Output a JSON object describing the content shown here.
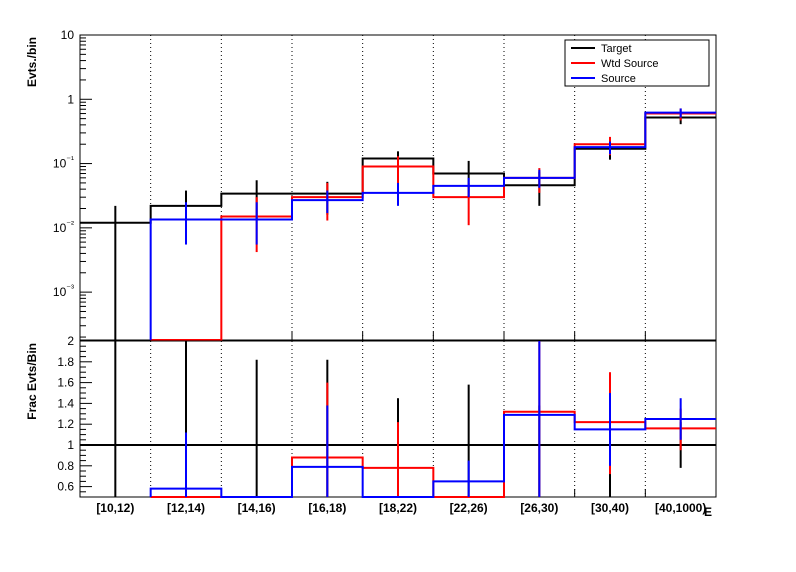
{
  "chart_data": [
    {
      "type": "line",
      "panel": "top",
      "ylabel": "Evts./bin",
      "yscale": "log",
      "ylim": [
        0.00018,
        10
      ],
      "yticks": [
        {
          "v": 10,
          "text": "10"
        },
        {
          "v": 1,
          "text": "1"
        },
        {
          "v": 0.1,
          "text": "10⁻¹"
        },
        {
          "v": 0.01,
          "text": "10⁻²"
        },
        {
          "v": 0.001,
          "text": "10⁻³"
        }
      ],
      "categories": [
        "[10,12)",
        "[12,14)",
        "[14,16)",
        "[16,18)",
        "[18,22)",
        "[22,26)",
        "[26,30)",
        "[30,40)",
        "[40,1000)"
      ],
      "legend": {
        "position": "top-right"
      },
      "series": [
        {
          "name": "Target",
          "color": "#000000",
          "values": [
            0.012,
            0.022,
            0.034,
            0.034,
            0.12,
            0.07,
            0.046,
            0.17,
            0.52
          ],
          "err_lo": [
            0.00018,
            0.008,
            0.014,
            0.016,
            0.08,
            0.03,
            0.022,
            0.115,
            0.41
          ],
          "err_hi": [
            0.022,
            0.038,
            0.055,
            0.052,
            0.155,
            0.11,
            0.075,
            0.22,
            0.62
          ]
        },
        {
          "name": "Wtd Source",
          "color": "#ff0000",
          "values": [
            null,
            0.00018,
            0.015,
            0.03,
            0.09,
            0.03,
            0.06,
            0.2,
            0.6
          ],
          "err_lo": [
            null,
            null,
            0.0042,
            0.013,
            0.045,
            0.011,
            0.035,
            0.135,
            0.47
          ],
          "err_hi": [
            null,
            null,
            0.03,
            0.05,
            0.13,
            0.05,
            0.085,
            0.26,
            0.72
          ]
        },
        {
          "name": "Source",
          "color": "#0000ff",
          "values": [
            null,
            0.0135,
            0.0135,
            0.027,
            0.035,
            0.045,
            0.06,
            0.18,
            0.62
          ],
          "err_lo": [
            null,
            0.0055,
            0.0055,
            0.017,
            0.022,
            0.03,
            0.042,
            0.14,
            0.52
          ],
          "err_hi": [
            null,
            0.025,
            0.025,
            0.038,
            0.05,
            0.06,
            0.08,
            0.22,
            0.72
          ]
        }
      ]
    },
    {
      "type": "line",
      "panel": "bottom",
      "ylabel": "Frac Evts/Bin",
      "xlabel": "E",
      "ylim": [
        0.5,
        2
      ],
      "yticks": [
        {
          "v": 2,
          "text": "2"
        },
        {
          "v": 1.8,
          "text": "1.8"
        },
        {
          "v": 1.6,
          "text": "1.6"
        },
        {
          "v": 1.4,
          "text": "1.4"
        },
        {
          "v": 1.2,
          "text": "1.2"
        },
        {
          "v": 1,
          "text": "1"
        },
        {
          "v": 0.8,
          "text": "0.8"
        },
        {
          "v": 0.6,
          "text": "0.6"
        }
      ],
      "reference_line": 1,
      "categories": [
        "[10,12)",
        "[12,14)",
        "[14,16)",
        "[16,18)",
        "[18,22)",
        "[22,26)",
        "[26,30)",
        "[30,40)",
        "[40,1000)"
      ],
      "series": [
        {
          "name": "Target",
          "color": "#000000",
          "values": [
            1,
            1,
            1,
            1,
            1,
            1,
            1,
            1,
            1
          ],
          "err_lo": [
            0.5,
            0.5,
            0.5,
            0.5,
            0.5,
            0.5,
            0.5,
            0.5,
            0.78
          ],
          "err_hi": [
            2,
            2,
            1.82,
            1.82,
            1.45,
            1.58,
            1.38,
            1.28,
            1.22
          ]
        },
        {
          "name": "Wtd Source",
          "color": "#ff0000",
          "values": [
            null,
            0.5,
            0.5,
            0.88,
            0.78,
            0.5,
            1.32,
            1.22,
            1.16
          ],
          "err_lo": [
            null,
            null,
            null,
            0.5,
            0.5,
            null,
            0.5,
            0.72,
            0.95
          ],
          "err_hi": [
            null,
            null,
            null,
            1.6,
            1.22,
            null,
            2,
            1.7,
            1.35
          ]
        },
        {
          "name": "Source",
          "color": "#0000ff",
          "values": [
            null,
            0.58,
            0.5,
            0.79,
            0.5,
            0.65,
            1.29,
            1.15,
            1.25
          ],
          "err_lo": [
            null,
            0.5,
            null,
            0.5,
            null,
            0.5,
            0.5,
            0.8,
            1.05
          ],
          "err_hi": [
            null,
            1.12,
            null,
            1.38,
            null,
            0.85,
            2,
            1.5,
            1.45
          ]
        }
      ]
    }
  ]
}
